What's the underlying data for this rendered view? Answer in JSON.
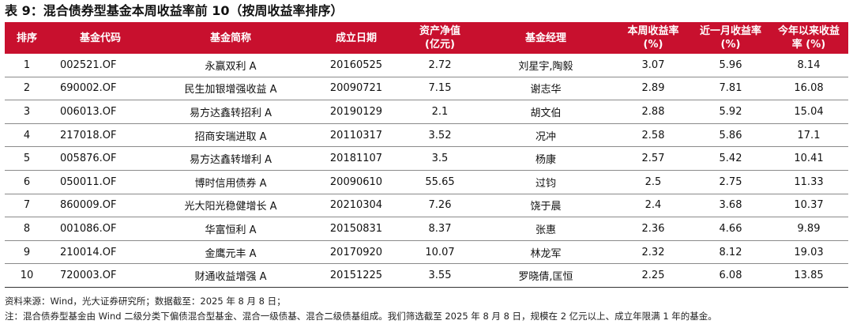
{
  "title": "表 9：混合债券型基金本周收益率前 10（按周收益率排序）",
  "table": {
    "headers": {
      "rank": "排序",
      "code": "基金代码",
      "name": "基金简称",
      "inception": "成立日期",
      "nav_line1": "资产净值",
      "nav_line2": "(亿元)",
      "manager": "基金经理",
      "week_return_line1": "本周收益率",
      "week_return_line2": "(%)",
      "month_return_line1": "近一月收益率",
      "month_return_line2": "(%)",
      "ytd_return_line1": "今年以来收益",
      "ytd_return_line2": "率 (%)"
    },
    "rows": [
      {
        "rank": "1",
        "code": "002521.OF",
        "name": "永赢双利 A",
        "inception": "20160525",
        "nav": "2.72",
        "manager": "刘星宇,陶毅",
        "week": "3.07",
        "month": "5.96",
        "ytd": "8.14"
      },
      {
        "rank": "2",
        "code": "690002.OF",
        "name": "民生加银增强收益 A",
        "inception": "20090721",
        "nav": "7.15",
        "manager": "谢志华",
        "week": "2.89",
        "month": "7.81",
        "ytd": "16.08"
      },
      {
        "rank": "3",
        "code": "006013.OF",
        "name": "易方达鑫转招利 A",
        "inception": "20190129",
        "nav": "2.1",
        "manager": "胡文伯",
        "week": "2.88",
        "month": "5.92",
        "ytd": "15.04"
      },
      {
        "rank": "4",
        "code": "217018.OF",
        "name": "招商安瑞进取 A",
        "inception": "20110317",
        "nav": "3.52",
        "manager": "况冲",
        "week": "2.58",
        "month": "5.86",
        "ytd": "17.1"
      },
      {
        "rank": "5",
        "code": "005876.OF",
        "name": "易方达鑫转增利 A",
        "inception": "20181107",
        "nav": "3.5",
        "manager": "杨康",
        "week": "2.57",
        "month": "5.42",
        "ytd": "10.41"
      },
      {
        "rank": "6",
        "code": "050011.OF",
        "name": "博时信用债券 A",
        "inception": "20090610",
        "nav": "55.65",
        "manager": "过钧",
        "week": "2.5",
        "month": "2.75",
        "ytd": "11.33"
      },
      {
        "rank": "7",
        "code": "860009.OF",
        "name": "光大阳光稳健增长 A",
        "inception": "20210304",
        "nav": "7.26",
        "manager": "饶于晨",
        "week": "2.4",
        "month": "3.68",
        "ytd": "10.37"
      },
      {
        "rank": "8",
        "code": "001086.OF",
        "name": "华富恒利 A",
        "inception": "20150831",
        "nav": "8.37",
        "manager": "张惠",
        "week": "2.36",
        "month": "4.66",
        "ytd": "9.89"
      },
      {
        "rank": "9",
        "code": "210014.OF",
        "name": "金鹰元丰 A",
        "inception": "20170920",
        "nav": "10.07",
        "manager": "林龙军",
        "week": "2.32",
        "month": "8.12",
        "ytd": "19.03"
      },
      {
        "rank": "10",
        "code": "720003.OF",
        "name": "财通收益增强 A",
        "inception": "20151225",
        "nav": "3.55",
        "manager": "罗晓倩,匡恒",
        "week": "2.25",
        "month": "6.08",
        "ytd": "13.85"
      }
    ]
  },
  "source_note": "资料来源：Wind，光大证券研究所；数据截至：2025 年 8 月 8 日；",
  "footnote": "注：混合债券型基金由 Wind 二级分类下偏债混合型基金、混合一级债基、混合二级债基组成。我们筛选截至 2025 年 8 月 8 日，规模在 2 亿元以上、成立年限满 1 年的基金。",
  "colors": {
    "header_bg": "#c8102e",
    "header_text": "#ffffff",
    "row_divider": "#8a8a8a"
  }
}
